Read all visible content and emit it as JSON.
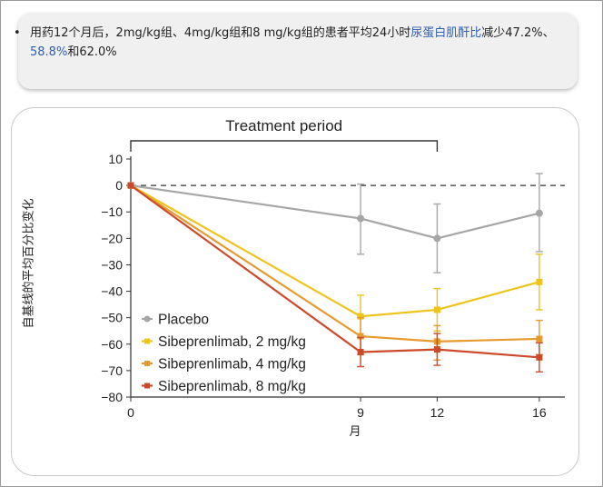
{
  "summary": {
    "bullet": "•",
    "text_before": "用药12个月后，2mg/kg组、4mg/kg组和8  mg/kg组的患者平均24小时",
    "highlight": "尿蛋白肌酐比",
    "text_mid": "减少47.2%、",
    "highlight2": "58.8%",
    "text_after": "和62.0%"
  },
  "chart_data": {
    "type": "line",
    "title": "Treatment period",
    "xlabel": "月",
    "ylabel": "自基线的平均百分比变化",
    "x": [
      0,
      9,
      12,
      16
    ],
    "xticks": [
      0,
      9,
      12,
      16
    ],
    "xlim": [
      0,
      17
    ],
    "ylim": [
      -80,
      10
    ],
    "yticks": [
      10,
      0,
      -10,
      -20,
      -30,
      -40,
      -50,
      -60,
      -70,
      -80
    ],
    "ytick_labels": [
      "10",
      "0",
      "−10",
      "−20",
      "−30",
      "−40",
      "−50",
      "−60",
      "−70",
      "−80"
    ],
    "reference_line": 0,
    "treatment_period": [
      0,
      12
    ],
    "legend_position": "bottom-left",
    "series": [
      {
        "name": "Placebo",
        "color": "#a6a6a6",
        "values": [
          0,
          -12.5,
          -20,
          -10.5
        ],
        "err_low": [
          0,
          -26,
          -33,
          -25
        ],
        "err_high": [
          0,
          0.5,
          -7,
          4.5
        ]
      },
      {
        "name": "Sibeprenlimab, 2 mg/kg",
        "color": "#eec41b",
        "values": [
          0,
          -49.5,
          -47,
          -36.5
        ],
        "err_low": [
          0,
          -57,
          -55,
          -47
        ],
        "err_high": [
          0,
          -41.5,
          -39,
          -26
        ]
      },
      {
        "name": "Sibeprenlimab, 4 mg/kg",
        "color": "#e79a2e",
        "values": [
          0,
          -57,
          -59,
          -58
        ],
        "err_low": [
          0,
          -64,
          -66,
          -64
        ],
        "err_high": [
          0,
          -50,
          -53,
          -51
        ]
      },
      {
        "name": "Sibeprenlimab, 8 mg/kg",
        "color": "#cc4a2a",
        "values": [
          0,
          -63,
          -62,
          -65
        ],
        "err_low": [
          0,
          -68.5,
          -68,
          -70.5
        ],
        "err_high": [
          0,
          -57.5,
          -56,
          -59.5
        ]
      }
    ]
  }
}
